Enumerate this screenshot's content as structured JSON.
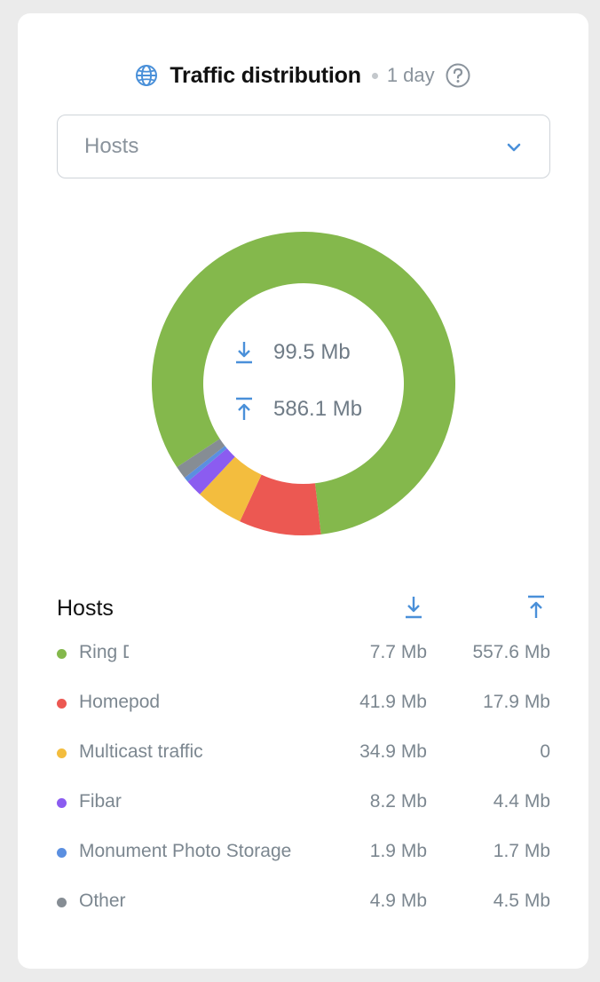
{
  "header": {
    "title": "Traffic distribution",
    "period": "1 day",
    "icon": "globe-icon",
    "help_icon": "help-icon"
  },
  "selector": {
    "value": "Hosts",
    "icon": "chevron-down-icon"
  },
  "totals": {
    "download": "99.5 Mb",
    "upload": "586.1 Mb"
  },
  "list": {
    "title": "Hosts",
    "rows": [
      {
        "name": "Ring Doorbell",
        "download": "7.7 Mb",
        "upload": "557.6 Mb",
        "color": "#84b84c"
      },
      {
        "name": "Homepod",
        "download": "41.9 Mb",
        "upload": "17.9 Mb",
        "color": "#ec5852"
      },
      {
        "name": "Multicast traffic",
        "download": "34.9 Mb",
        "upload": "0",
        "color": "#f3bd3e"
      },
      {
        "name": "Fibar",
        "download": "8.2 Mb",
        "upload": "4.4 Mb",
        "color": "#8b5cf0"
      },
      {
        "name": "Monument Photo Storage",
        "download": "1.9 Mb",
        "upload": "1.7 Mb",
        "color": "#5b8fe0"
      },
      {
        "name": "Other",
        "download": "4.9 Mb",
        "upload": "4.5 Mb",
        "color": "#868d94"
      }
    ]
  },
  "chart_data": {
    "type": "pie",
    "categories": [
      "Ring Doorbell",
      "Homepod",
      "Multicast traffic",
      "Fibar",
      "Monument Photo Storage",
      "Other"
    ],
    "values": [
      565.3,
      59.8,
      34.9,
      12.6,
      3.6,
      9.4
    ],
    "colors": [
      "#84b84c",
      "#ec5852",
      "#f3bd3e",
      "#8b5cf0",
      "#5b8fe0",
      "#868d94"
    ],
    "hole": true
  }
}
